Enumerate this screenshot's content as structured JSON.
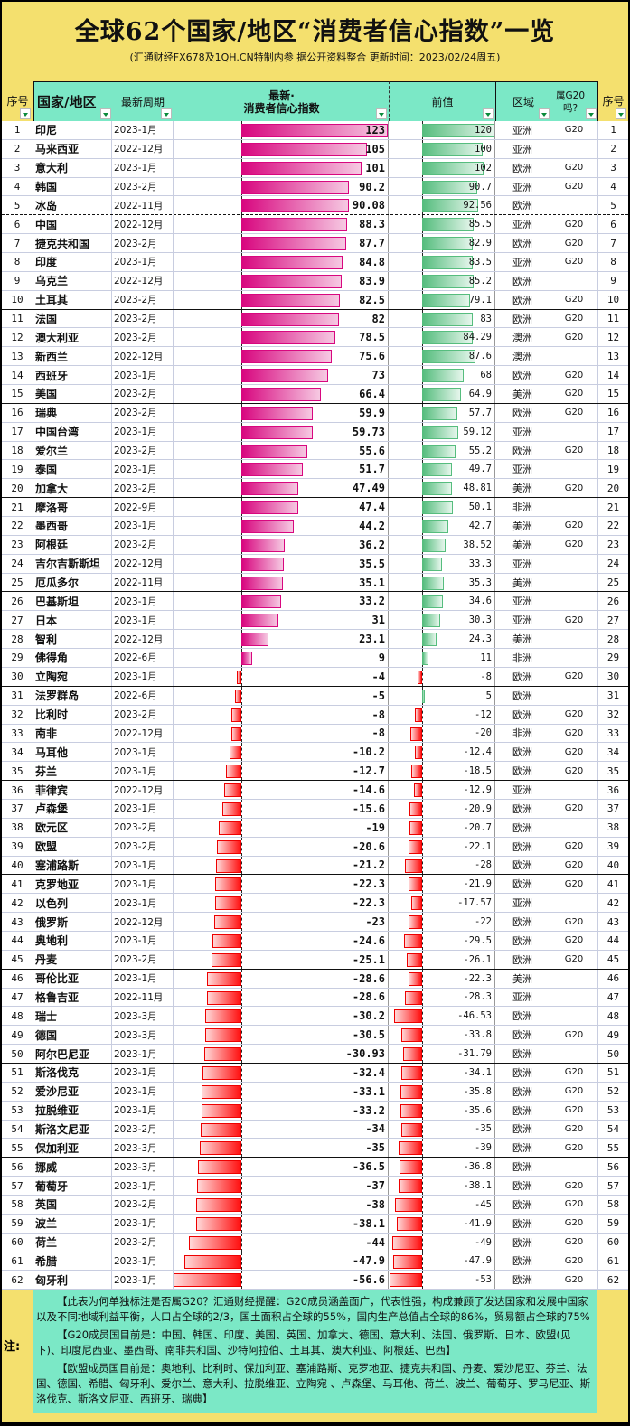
{
  "title": "全球62个国家/地区“消费者信心指数”一览",
  "subtitle": "(汇通财经FX678及1QH.CN特制内参 据公开资料整合 更新时间：2023/02/24周五)",
  "headers": {
    "seq": "序号",
    "country": "国家/地区",
    "period": "最新周期",
    "latest": "最新·\n消费者信心指数",
    "prev": "前值",
    "region": "区域",
    "g20": "属G20吗?",
    "seq2": "序号"
  },
  "colors": {
    "background": "#f4e06e",
    "header": "#7be8c6",
    "latest_bar": "#d8077f",
    "prev_bar": "#56bd7e",
    "negative_bar": "#ff1010"
  },
  "rows": [
    {
      "n": "印尼",
      "p": "2023-1月",
      "v": 123,
      "pv": 120,
      "r": "亚洲",
      "g": "G20"
    },
    {
      "n": "马来西亚",
      "p": "2022-12月",
      "v": 105,
      "pv": 100,
      "r": "亚洲",
      "g": ""
    },
    {
      "n": "意大利",
      "p": "2023-1月",
      "v": 101,
      "pv": 102,
      "r": "欧洲",
      "g": "G20"
    },
    {
      "n": "韩国",
      "p": "2023-2月",
      "v": 90.2,
      "pv": 90.7,
      "r": "亚洲",
      "g": "G20"
    },
    {
      "n": "冰岛",
      "p": "2022-11月",
      "v": 90.08,
      "pv": 92.56,
      "r": "欧洲",
      "g": ""
    },
    {
      "n": "中国",
      "p": "2022-12月",
      "v": 88.3,
      "pv": 85.5,
      "r": "亚洲",
      "g": "G20"
    },
    {
      "n": "捷克共和国",
      "p": "2023-2月",
      "v": 87.7,
      "pv": 82.9,
      "r": "欧洲",
      "g": "G20"
    },
    {
      "n": "印度",
      "p": "2023-1月",
      "v": 84.8,
      "pv": 83.5,
      "r": "亚洲",
      "g": "G20"
    },
    {
      "n": "乌克兰",
      "p": "2022-12月",
      "v": 83.9,
      "pv": 85.2,
      "r": "欧洲",
      "g": ""
    },
    {
      "n": "土耳其",
      "p": "2023-2月",
      "v": 82.5,
      "pv": 79.1,
      "r": "欧洲",
      "g": "G20"
    },
    {
      "n": "法国",
      "p": "2023-2月",
      "v": 82,
      "pv": 83,
      "r": "欧洲",
      "g": "G20"
    },
    {
      "n": "澳大利亚",
      "p": "2023-2月",
      "v": 78.5,
      "pv": 84.29,
      "r": "澳洲",
      "g": "G20"
    },
    {
      "n": "新西兰",
      "p": "2022-12月",
      "v": 75.6,
      "pv": 87.6,
      "r": "澳洲",
      "g": ""
    },
    {
      "n": "西班牙",
      "p": "2023-1月",
      "v": 73,
      "pv": 68,
      "r": "欧洲",
      "g": "G20"
    },
    {
      "n": "美国",
      "p": "2023-2月",
      "v": 66.4,
      "pv": 64.9,
      "r": "美洲",
      "g": "G20"
    },
    {
      "n": "瑞典",
      "p": "2023-2月",
      "v": 59.9,
      "pv": 57.7,
      "r": "欧洲",
      "g": "G20"
    },
    {
      "n": "中国台湾",
      "p": "2023-1月",
      "v": 59.73,
      "pv": 59.12,
      "r": "亚洲",
      "g": ""
    },
    {
      "n": "爱尔兰",
      "p": "2023-2月",
      "v": 55.6,
      "pv": 55.2,
      "r": "欧洲",
      "g": "G20"
    },
    {
      "n": "泰国",
      "p": "2023-1月",
      "v": 51.7,
      "pv": 49.7,
      "r": "亚洲",
      "g": ""
    },
    {
      "n": "加拿大",
      "p": "2023-2月",
      "v": 47.49,
      "pv": 48.81,
      "r": "美洲",
      "g": "G20"
    },
    {
      "n": "摩洛哥",
      "p": "2022-9月",
      "v": 47.4,
      "pv": 50.1,
      "r": "非洲",
      "g": ""
    },
    {
      "n": "墨西哥",
      "p": "2023-1月",
      "v": 44.2,
      "pv": 42.7,
      "r": "美洲",
      "g": "G20"
    },
    {
      "n": "阿根廷",
      "p": "2023-2月",
      "v": 36.2,
      "pv": 38.52,
      "r": "美洲",
      "g": "G20"
    },
    {
      "n": "吉尔吉斯斯坦",
      "p": "2022-12月",
      "v": 35.5,
      "pv": 33.3,
      "r": "亚洲",
      "g": ""
    },
    {
      "n": "厄瓜多尔",
      "p": "2022-11月",
      "v": 35.1,
      "pv": 35.3,
      "r": "美洲",
      "g": ""
    },
    {
      "n": "巴基斯坦",
      "p": "2023-1月",
      "v": 33.2,
      "pv": 34.6,
      "r": "亚洲",
      "g": ""
    },
    {
      "n": "日本",
      "p": "2023-1月",
      "v": 31,
      "pv": 30.3,
      "r": "亚洲",
      "g": "G20"
    },
    {
      "n": "智利",
      "p": "2022-12月",
      "v": 23.1,
      "pv": 24.3,
      "r": "美洲",
      "g": ""
    },
    {
      "n": "佛得角",
      "p": "2022-6月",
      "v": 9,
      "pv": 11,
      "r": "非洲",
      "g": ""
    },
    {
      "n": "立陶宛",
      "p": "2023-1月",
      "v": -4,
      "pv": -8,
      "r": "欧洲",
      "g": "G20"
    },
    {
      "n": "法罗群岛",
      "p": "2022-6月",
      "v": -5,
      "pv": 5,
      "r": "欧洲",
      "g": ""
    },
    {
      "n": "比利时",
      "p": "2023-2月",
      "v": -8,
      "pv": -12,
      "r": "欧洲",
      "g": "G20"
    },
    {
      "n": "南非",
      "p": "2022-12月",
      "v": -8,
      "pv": -20,
      "r": "非洲",
      "g": "G20"
    },
    {
      "n": "马耳他",
      "p": "2023-1月",
      "v": -10.2,
      "pv": -12.4,
      "r": "欧洲",
      "g": "G20"
    },
    {
      "n": "芬兰",
      "p": "2023-1月",
      "v": -12.7,
      "pv": -18.5,
      "r": "欧洲",
      "g": "G20"
    },
    {
      "n": "菲律宾",
      "p": "2022-12月",
      "v": -14.6,
      "pv": -12.9,
      "r": "亚洲",
      "g": ""
    },
    {
      "n": "卢森堡",
      "p": "2023-1月",
      "v": -15.6,
      "pv": -20.9,
      "r": "欧洲",
      "g": "G20"
    },
    {
      "n": "欧元区",
      "p": "2023-2月",
      "v": -19,
      "pv": -20.7,
      "r": "欧洲",
      "g": ""
    },
    {
      "n": "欧盟",
      "p": "2023-2月",
      "v": -20.6,
      "pv": -22.1,
      "r": "欧洲",
      "g": "G20"
    },
    {
      "n": "塞浦路斯",
      "p": "2023-1月",
      "v": -21.2,
      "pv": -28,
      "r": "欧洲",
      "g": "G20"
    },
    {
      "n": "克罗地亚",
      "p": "2023-1月",
      "v": -22.3,
      "pv": -21.9,
      "r": "欧洲",
      "g": "G20"
    },
    {
      "n": "以色列",
      "p": "2023-1月",
      "v": -22.3,
      "pv": -17.57,
      "r": "亚洲",
      "g": ""
    },
    {
      "n": "俄罗斯",
      "p": "2022-12月",
      "v": -23,
      "pv": -22,
      "r": "欧洲",
      "g": "G20"
    },
    {
      "n": "奥地利",
      "p": "2023-1月",
      "v": -24.6,
      "pv": -29.5,
      "r": "欧洲",
      "g": "G20"
    },
    {
      "n": "丹麦",
      "p": "2023-2月",
      "v": -25.1,
      "pv": -26.1,
      "r": "欧洲",
      "g": "G20"
    },
    {
      "n": "哥伦比亚",
      "p": "2023-1月",
      "v": -28.6,
      "pv": -22.3,
      "r": "美洲",
      "g": ""
    },
    {
      "n": "格鲁吉亚",
      "p": "2022-11月",
      "v": -28.6,
      "pv": -28.3,
      "r": "亚洲",
      "g": ""
    },
    {
      "n": "瑞士",
      "p": "2023-3月",
      "v": -30.2,
      "pv": -46.53,
      "r": "欧洲",
      "g": ""
    },
    {
      "n": "德国",
      "p": "2023-3月",
      "v": -30.5,
      "pv": -33.8,
      "r": "欧洲",
      "g": "G20"
    },
    {
      "n": "阿尔巴尼亚",
      "p": "2023-1月",
      "v": -30.93,
      "pv": -31.79,
      "r": "欧洲",
      "g": ""
    },
    {
      "n": "斯洛伐克",
      "p": "2023-1月",
      "v": -32.4,
      "pv": -34.1,
      "r": "欧洲",
      "g": "G20"
    },
    {
      "n": "爱沙尼亚",
      "p": "2023-1月",
      "v": -33.1,
      "pv": -35.8,
      "r": "欧洲",
      "g": "G20"
    },
    {
      "n": "拉脱维亚",
      "p": "2023-1月",
      "v": -33.2,
      "pv": -35.6,
      "r": "欧洲",
      "g": "G20"
    },
    {
      "n": "斯洛文尼亚",
      "p": "2023-2月",
      "v": -34,
      "pv": -35,
      "r": "欧洲",
      "g": "G20"
    },
    {
      "n": "保加利亚",
      "p": "2023-3月",
      "v": -35,
      "pv": -39,
      "r": "欧洲",
      "g": "G20"
    },
    {
      "n": "挪威",
      "p": "2023-3月",
      "v": -36.5,
      "pv": -36.8,
      "r": "欧洲",
      "g": ""
    },
    {
      "n": "葡萄牙",
      "p": "2023-1月",
      "v": -37,
      "pv": -38.1,
      "r": "欧洲",
      "g": "G20"
    },
    {
      "n": "英国",
      "p": "2023-2月",
      "v": -38,
      "pv": -45,
      "r": "欧洲",
      "g": "G20"
    },
    {
      "n": "波兰",
      "p": "2023-1月",
      "v": -38.1,
      "pv": -41.9,
      "r": "欧洲",
      "g": "G20"
    },
    {
      "n": "荷兰",
      "p": "2023-2月",
      "v": -44,
      "pv": -49,
      "r": "欧洲",
      "g": "G20"
    },
    {
      "n": "希腊",
      "p": "2023-1月",
      "v": -47.9,
      "pv": -47.9,
      "r": "欧洲",
      "g": "G20"
    },
    {
      "n": "匈牙利",
      "p": "2023-1月",
      "v": -56.6,
      "pv": -53,
      "r": "欧洲",
      "g": "G20"
    }
  ],
  "notes": {
    "label": "注:",
    "p1": "【此表为何单独标注是否属G20？汇通财经提醒：G20成员涵盖面广，代表性强，构成兼顾了发达国家和发展中国家以及不同地域利益平衡，人口占全球的2/3，国土面积占全球的55%，国内生产总值占全球的86%，贸易额占全球的75%",
    "p2": "【G20成员国目前是：中国、韩国、印度、美国、英国、加拿大、德国、意大利、法国、俄罗斯、日本、欧盟(见下)、印度尼西亚、墨西哥、南非共和国、沙特阿拉伯、土耳其、澳大利亚、阿根廷、巴西】",
    "p3": "【欧盟成员国目前是：奥地利、比利时、保加利亚、塞浦路斯、克罗地亚、捷克共和国、丹麦、爱沙尼亚、芬兰、法国、德国、希腊、匈牙利、爱尔兰、意大利、拉脱维亚、立陶宛 、卢森堡、马耳他、荷兰、波兰、葡萄牙、罗马尼亚、斯洛伐克、斯洛文尼亚、西班牙、瑞典】"
  }
}
